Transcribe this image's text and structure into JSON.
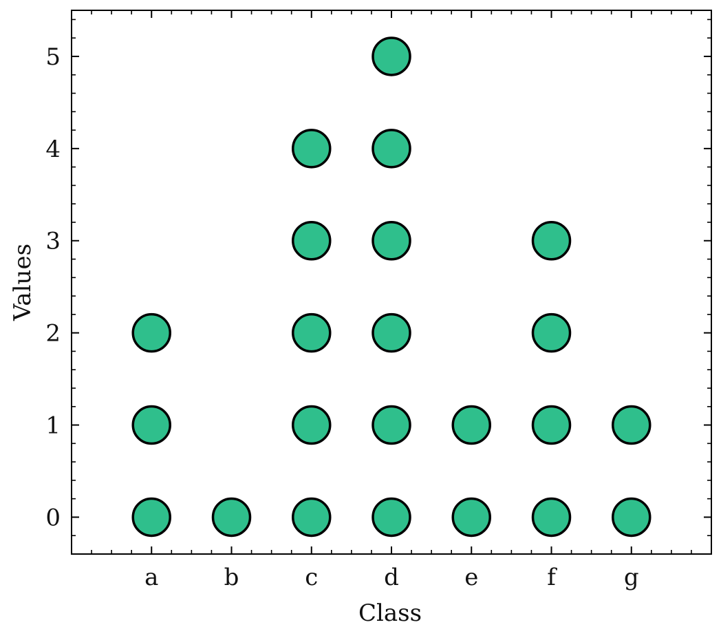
{
  "chart_data": {
    "type": "scatter",
    "title": "",
    "xlabel": "Class",
    "ylabel": "Values",
    "categories": [
      "a",
      "b",
      "c",
      "d",
      "e",
      "f",
      "g"
    ],
    "y_ticks": [
      "0",
      "1",
      "2",
      "3",
      "4",
      "5"
    ],
    "ylim": [
      -0.4,
      5.5
    ],
    "xlim": [
      -1,
      7
    ],
    "grid": false,
    "legend": "none",
    "marker_color": "#2fbf8c",
    "marker_edge_color": "#000000",
    "points": [
      {
        "x": "a",
        "y": 0
      },
      {
        "x": "a",
        "y": 1
      },
      {
        "x": "a",
        "y": 2
      },
      {
        "x": "b",
        "y": 0
      },
      {
        "x": "c",
        "y": 0
      },
      {
        "x": "c",
        "y": 1
      },
      {
        "x": "c",
        "y": 2
      },
      {
        "x": "c",
        "y": 3
      },
      {
        "x": "c",
        "y": 4
      },
      {
        "x": "d",
        "y": 0
      },
      {
        "x": "d",
        "y": 1
      },
      {
        "x": "d",
        "y": 2
      },
      {
        "x": "d",
        "y": 3
      },
      {
        "x": "d",
        "y": 4
      },
      {
        "x": "d",
        "y": 5
      },
      {
        "x": "e",
        "y": 0
      },
      {
        "x": "e",
        "y": 1
      },
      {
        "x": "f",
        "y": 0
      },
      {
        "x": "f",
        "y": 1
      },
      {
        "x": "f",
        "y": 2
      },
      {
        "x": "f",
        "y": 3
      },
      {
        "x": "g",
        "y": 0
      },
      {
        "x": "g",
        "y": 1
      }
    ]
  }
}
